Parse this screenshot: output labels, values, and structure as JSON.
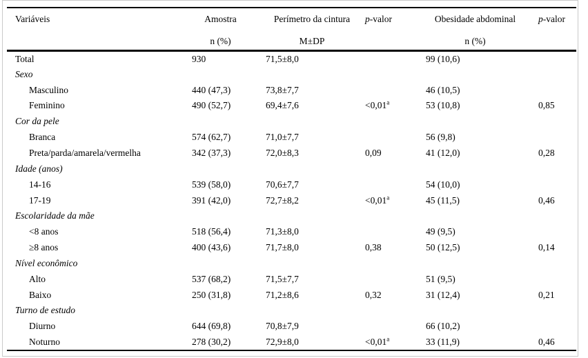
{
  "table": {
    "headers": {
      "col1": "Variáveis",
      "col2_line1": "Amostra",
      "col2_line2": "n (%)",
      "col3_line1": "Perímetro da cintura",
      "col3_line2": "M±DP",
      "col4_p": "p",
      "col4_rest": "-valor",
      "col5_line1": "Obesidade abdominal",
      "col5_line2": "n (%)",
      "col6_p": "p",
      "col6_rest": "-valor"
    },
    "rows": [
      {
        "label": "Total",
        "type": "total",
        "amostra": "930",
        "cintura": "71,5±8,0",
        "p_cintura": "",
        "p_cintura_sup": "",
        "obesidade": "99 (10,6)",
        "p_obesidade": ""
      },
      {
        "label": "Sexo",
        "type": "category",
        "amostra": "",
        "cintura": "",
        "p_cintura": "",
        "p_cintura_sup": "",
        "obesidade": "",
        "p_obesidade": ""
      },
      {
        "label": "Masculino",
        "type": "item",
        "amostra": "440 (47,3)",
        "cintura": "73,8±7,7",
        "p_cintura": "",
        "p_cintura_sup": "",
        "obesidade": "46 (10,5)",
        "p_obesidade": ""
      },
      {
        "label": "Feminino",
        "type": "item",
        "amostra": "490 (52,7)",
        "cintura": "69,4±7,6",
        "p_cintura": "<0,01",
        "p_cintura_sup": "a",
        "obesidade": "53 (10,8)",
        "p_obesidade": "0,85"
      },
      {
        "label": "Cor da pele",
        "type": "category",
        "amostra": "",
        "cintura": "",
        "p_cintura": "",
        "p_cintura_sup": "",
        "obesidade": "",
        "p_obesidade": ""
      },
      {
        "label": "Branca",
        "type": "item",
        "amostra": "574 (62,7)",
        "cintura": "71,0±7,7",
        "p_cintura": "",
        "p_cintura_sup": "",
        "obesidade": "56 (9,8)",
        "p_obesidade": ""
      },
      {
        "label": "Preta/parda/amarela/vermelha",
        "type": "item",
        "amostra": "342 (37,3)",
        "cintura": "72,0±8,3",
        "p_cintura": "0,09",
        "p_cintura_sup": "",
        "obesidade": "41 (12,0)",
        "p_obesidade": "0,28"
      },
      {
        "label": "Idade (anos)",
        "type": "category",
        "amostra": "",
        "cintura": "",
        "p_cintura": "",
        "p_cintura_sup": "",
        "obesidade": "",
        "p_obesidade": ""
      },
      {
        "label": "14-16",
        "type": "item",
        "amostra": "539 (58,0)",
        "cintura": "70,6±7,7",
        "p_cintura": "",
        "p_cintura_sup": "",
        "obesidade": "54 (10,0)",
        "p_obesidade": ""
      },
      {
        "label": "17-19",
        "type": "item",
        "amostra": "391 (42,0)",
        "cintura": "72,7±8,2",
        "p_cintura": "<0,01",
        "p_cintura_sup": "a",
        "obesidade": "45 (11,5)",
        "p_obesidade": "0,46"
      },
      {
        "label": "Escolaridade da mãe",
        "type": "category",
        "amostra": "",
        "cintura": "",
        "p_cintura": "",
        "p_cintura_sup": "",
        "obesidade": "",
        "p_obesidade": ""
      },
      {
        "label": "<8 anos",
        "type": "item",
        "amostra": "518 (56,4)",
        "cintura": "71,3±8,0",
        "p_cintura": "",
        "p_cintura_sup": "",
        "obesidade": "49 (9,5)",
        "p_obesidade": ""
      },
      {
        "label": "≥8 anos",
        "type": "item",
        "amostra": "400 (43,6)",
        "cintura": "71,7±8,0",
        "p_cintura": "0,38",
        "p_cintura_sup": "",
        "obesidade": "50 (12,5)",
        "p_obesidade": "0,14"
      },
      {
        "label": "Nível econômico",
        "type": "category",
        "amostra": "",
        "cintura": "",
        "p_cintura": "",
        "p_cintura_sup": "",
        "obesidade": "",
        "p_obesidade": ""
      },
      {
        "label": "Alto",
        "type": "item",
        "amostra": "537 (68,2)",
        "cintura": "71,5±7,7",
        "p_cintura": "",
        "p_cintura_sup": "",
        "obesidade": "51 (9,5)",
        "p_obesidade": ""
      },
      {
        "label": "Baixo",
        "type": "item",
        "amostra": "250 (31,8)",
        "cintura": "71,2±8,6",
        "p_cintura": "0,32",
        "p_cintura_sup": "",
        "obesidade": "31 (12,4)",
        "p_obesidade": "0,21"
      },
      {
        "label": "Turno de estudo",
        "type": "category",
        "amostra": "",
        "cintura": "",
        "p_cintura": "",
        "p_cintura_sup": "",
        "obesidade": "",
        "p_obesidade": ""
      },
      {
        "label": "Diurno",
        "type": "item",
        "amostra": "644 (69,8)",
        "cintura": "70,8±7,9",
        "p_cintura": "",
        "p_cintura_sup": "",
        "obesidade": "66 (10,2)",
        "p_obesidade": ""
      },
      {
        "label": "Noturno",
        "type": "item",
        "amostra": "278 (30,2)",
        "cintura": "72,9±8,0",
        "p_cintura": "<0,01",
        "p_cintura_sup": "a",
        "obesidade": "33 (11,9)",
        "p_obesidade": "0,46"
      }
    ]
  },
  "colors": {
    "rule": "#000000",
    "text": "#000000",
    "outer_border": "#c9c9c9",
    "background": "#ffffff"
  }
}
